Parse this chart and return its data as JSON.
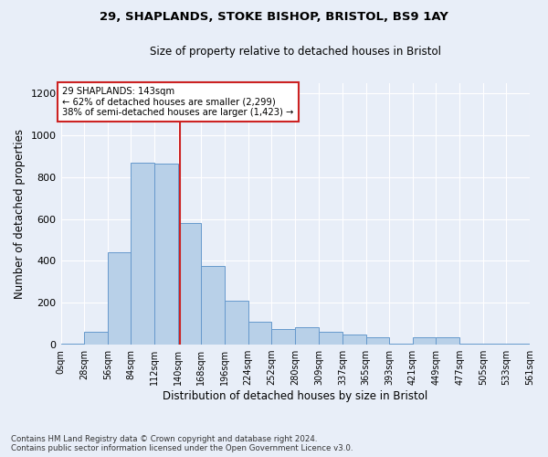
{
  "title1": "29, SHAPLANDS, STOKE BISHOP, BRISTOL, BS9 1AY",
  "title2": "Size of property relative to detached houses in Bristol",
  "xlabel": "Distribution of detached houses by size in Bristol",
  "ylabel": "Number of detached properties",
  "annotation_line1": "29 SHAPLANDS: 143sqm",
  "annotation_line2": "← 62% of detached houses are smaller (2,299)",
  "annotation_line3": "38% of semi-detached houses are larger (1,423) →",
  "property_size_sqm": 143,
  "bin_edges": [
    0,
    28,
    56,
    84,
    112,
    140,
    168,
    196,
    224,
    252,
    280,
    309,
    337,
    365,
    393,
    421,
    449,
    477,
    505,
    533,
    561
  ],
  "bar_heights": [
    5,
    60,
    440,
    870,
    865,
    580,
    375,
    210,
    110,
    75,
    85,
    60,
    50,
    35,
    5,
    35,
    35,
    5,
    5,
    5
  ],
  "bar_color": "#b8d0e8",
  "bar_edgecolor": "#6699cc",
  "vline_color": "#cc2222",
  "vline_x": 143,
  "annotation_box_edgecolor": "#cc2222",
  "annotation_box_facecolor": "#ffffff",
  "background_color": "#e8eef8",
  "ylim": [
    0,
    1250
  ],
  "yticks": [
    0,
    200,
    400,
    600,
    800,
    1000,
    1200
  ],
  "footer_line1": "Contains HM Land Registry data © Crown copyright and database right 2024.",
  "footer_line2": "Contains public sector information licensed under the Open Government Licence v3.0."
}
